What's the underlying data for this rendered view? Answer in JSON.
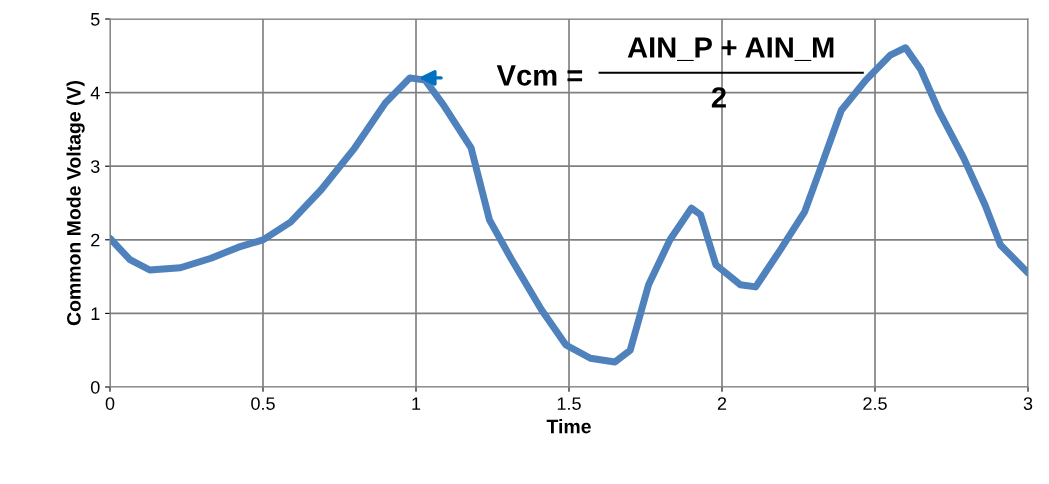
{
  "chart_data": {
    "type": "line",
    "xlabel": "Time",
    "ylabel": "Common Mode Voltage (V)",
    "xlim": [
      0,
      3
    ],
    "ylim": [
      0,
      5
    ],
    "xticks": [
      0,
      0.5,
      1,
      1.5,
      2,
      2.5,
      3
    ],
    "yticks": [
      0,
      1,
      2,
      3,
      4,
      5
    ],
    "grid": true,
    "marker": "none",
    "line_style": "solid",
    "series": [
      {
        "color": "#4f81bd",
        "x": [
          0,
          0.065,
          0.13,
          0.23,
          0.33,
          0.42,
          0.5,
          0.59,
          0.69,
          0.8,
          0.9,
          0.98,
          1.03,
          1.09,
          1.18,
          1.24,
          1.31,
          1.41,
          1.49,
          1.57,
          1.65,
          1.7,
          1.76,
          1.83,
          1.9,
          1.93,
          1.98,
          2.06,
          2.11,
          2.19,
          2.27,
          2.32,
          2.39,
          2.47,
          2.55,
          2.6,
          2.65,
          2.71,
          2.79,
          2.86,
          2.91,
          3.0
        ],
        "values": [
          2.02,
          1.73,
          1.59,
          1.62,
          1.75,
          1.9,
          2.0,
          2.24,
          2.68,
          3.25,
          3.86,
          4.2,
          4.17,
          3.83,
          3.25,
          2.27,
          1.75,
          1.05,
          0.57,
          0.39,
          0.34,
          0.5,
          1.39,
          2.0,
          2.43,
          2.34,
          1.66,
          1.39,
          1.36,
          1.86,
          2.38,
          2.95,
          3.76,
          4.17,
          4.51,
          4.61,
          4.31,
          3.74,
          3.11,
          2.47,
          1.93,
          1.55
        ]
      }
    ],
    "annotations": [
      {
        "text": "Vcm =",
        "x": 1,
        "y": 4.2
      },
      "AIN_P + AIN_M",
      "2"
    ]
  }
}
